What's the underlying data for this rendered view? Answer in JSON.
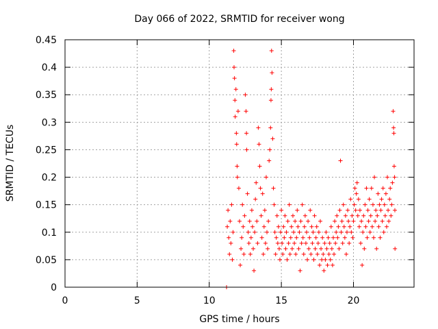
{
  "chart_data": {
    "type": "scatter",
    "title": "Day 066 of 2022, SRMTID for receiver wong",
    "xlabel": "GPS time / hours",
    "ylabel": "SRMTID / TECUs",
    "xlim": [
      0,
      24.2
    ],
    "ylim": [
      0,
      0.45
    ],
    "xticks": [
      0,
      5,
      10,
      15,
      20
    ],
    "xtick_labels": [
      "0",
      "5",
      "10",
      "15",
      "20"
    ],
    "yticks": [
      0,
      0.05,
      0.1,
      0.15,
      0.2,
      0.25,
      0.3,
      0.35,
      0.4,
      0.45
    ],
    "ytick_labels": [
      "0",
      "0.05",
      "0.1",
      "0.15",
      "0.2",
      "0.25",
      "0.3",
      "0.35",
      "0.4",
      "0.45"
    ],
    "grid": true,
    "marker": "+",
    "marker_color": "#ff0000",
    "series": [
      {
        "name": "SRMTID",
        "points": [
          [
            11.2,
            0.0
          ],
          [
            11.25,
            0.11
          ],
          [
            11.3,
            0.14
          ],
          [
            11.35,
            0.09
          ],
          [
            11.4,
            0.06
          ],
          [
            11.45,
            0.12
          ],
          [
            11.5,
            0.08
          ],
          [
            11.55,
            0.15
          ],
          [
            11.6,
            0.05
          ],
          [
            11.65,
            0.1
          ],
          [
            11.7,
            0.43
          ],
          [
            11.72,
            0.4
          ],
          [
            11.75,
            0.38
          ],
          [
            11.78,
            0.34
          ],
          [
            11.8,
            0.31
          ],
          [
            11.85,
            0.36
          ],
          [
            11.88,
            0.28
          ],
          [
            11.9,
            0.26
          ],
          [
            11.93,
            0.22
          ],
          [
            11.95,
            0.2
          ],
          [
            12.0,
            0.32
          ],
          [
            12.05,
            0.18
          ],
          [
            12.1,
            0.12
          ],
          [
            12.15,
            0.04
          ],
          [
            12.2,
            0.07
          ],
          [
            12.25,
            0.09
          ],
          [
            12.3,
            0.15
          ],
          [
            12.35,
            0.11
          ],
          [
            12.4,
            0.06
          ],
          [
            12.45,
            0.13
          ],
          [
            12.5,
            0.35
          ],
          [
            12.55,
            0.32
          ],
          [
            12.58,
            0.28
          ],
          [
            12.6,
            0.25
          ],
          [
            12.65,
            0.17
          ],
          [
            12.7,
            0.1
          ],
          [
            12.75,
            0.08
          ],
          [
            12.8,
            0.12
          ],
          [
            12.85,
            0.06
          ],
          [
            12.9,
            0.09
          ],
          [
            12.95,
            0.14
          ],
          [
            13.0,
            0.11
          ],
          [
            13.05,
            0.07
          ],
          [
            13.1,
            0.03
          ],
          [
            13.15,
            0.1
          ],
          [
            13.2,
            0.16
          ],
          [
            13.25,
            0.19
          ],
          [
            13.3,
            0.12
          ],
          [
            13.35,
            0.08
          ],
          [
            13.4,
            0.29
          ],
          [
            13.45,
            0.26
          ],
          [
            13.5,
            0.22
          ],
          [
            13.55,
            0.18
          ],
          [
            13.6,
            0.13
          ],
          [
            13.65,
            0.09
          ],
          [
            13.7,
            0.17
          ],
          [
            13.75,
            0.06
          ],
          [
            13.8,
            0.11
          ],
          [
            13.85,
            0.14
          ],
          [
            13.9,
            0.08
          ],
          [
            13.95,
            0.2
          ],
          [
            14.0,
            0.1
          ],
          [
            14.05,
            0.07
          ],
          [
            14.1,
            0.12
          ],
          [
            14.15,
            0.23
          ],
          [
            14.2,
            0.25
          ],
          [
            14.25,
            0.29
          ],
          [
            14.28,
            0.34
          ],
          [
            14.3,
            0.36
          ],
          [
            14.32,
            0.43
          ],
          [
            14.35,
            0.39
          ],
          [
            14.4,
            0.27
          ],
          [
            14.45,
            0.18
          ],
          [
            14.5,
            0.15
          ],
          [
            14.55,
            0.1
          ],
          [
            14.6,
            0.06
          ],
          [
            14.65,
            0.09
          ],
          [
            14.7,
            0.13
          ],
          [
            14.75,
            0.08
          ],
          [
            14.8,
            0.11
          ],
          [
            14.85,
            0.07
          ],
          [
            14.9,
            0.05
          ],
          [
            14.95,
            0.1
          ],
          [
            15.0,
            0.14
          ],
          [
            15.05,
            0.08
          ],
          [
            15.1,
            0.06
          ],
          [
            15.15,
            0.11
          ],
          [
            15.2,
            0.09
          ],
          [
            15.25,
            0.13
          ],
          [
            15.3,
            0.07
          ],
          [
            15.35,
            0.1
          ],
          [
            15.4,
            0.05
          ],
          [
            15.45,
            0.12
          ],
          [
            15.5,
            0.08
          ],
          [
            15.55,
            0.15
          ],
          [
            15.6,
            0.06
          ],
          [
            15.65,
            0.09
          ],
          [
            15.7,
            0.11
          ],
          [
            15.75,
            0.07
          ],
          [
            15.8,
            0.13
          ],
          [
            15.85,
            0.1
          ],
          [
            15.9,
            0.08
          ],
          [
            15.95,
            0.12
          ],
          [
            16.0,
            0.06
          ],
          [
            16.05,
            0.09
          ],
          [
            16.1,
            0.14
          ],
          [
            16.15,
            0.11
          ],
          [
            16.2,
            0.07
          ],
          [
            16.25,
            0.1
          ],
          [
            16.3,
            0.03
          ],
          [
            16.35,
            0.12
          ],
          [
            16.4,
            0.08
          ],
          [
            16.45,
            0.15
          ],
          [
            16.5,
            0.09
          ],
          [
            16.55,
            0.06
          ],
          [
            16.6,
            0.11
          ],
          [
            16.65,
            0.13
          ],
          [
            16.7,
            0.08
          ],
          [
            16.75,
            0.1
          ],
          [
            16.8,
            0.05
          ],
          [
            16.85,
            0.12
          ],
          [
            16.9,
            0.07
          ],
          [
            16.95,
            0.09
          ],
          [
            17.0,
            0.14
          ],
          [
            17.05,
            0.06
          ],
          [
            17.1,
            0.11
          ],
          [
            17.15,
            0.08
          ],
          [
            17.2,
            0.1
          ],
          [
            17.25,
            0.05
          ],
          [
            17.3,
            0.13
          ],
          [
            17.35,
            0.07
          ],
          [
            17.4,
            0.09
          ],
          [
            17.45,
            0.11
          ],
          [
            17.5,
            0.06
          ],
          [
            17.55,
            0.08
          ],
          [
            17.6,
            0.1
          ],
          [
            17.65,
            0.04
          ],
          [
            17.7,
            0.12
          ],
          [
            17.75,
            0.07
          ],
          [
            17.8,
            0.05
          ],
          [
            17.85,
            0.09
          ],
          [
            17.9,
            0.06
          ],
          [
            17.95,
            0.03
          ],
          [
            18.0,
            0.08
          ],
          [
            18.05,
            0.05
          ],
          [
            18.1,
            0.1
          ],
          [
            18.15,
            0.07
          ],
          [
            18.2,
            0.04
          ],
          [
            18.25,
            0.09
          ],
          [
            18.3,
            0.06
          ],
          [
            18.35,
            0.08
          ],
          [
            18.4,
            0.05
          ],
          [
            18.45,
            0.11
          ],
          [
            18.5,
            0.07
          ],
          [
            18.55,
            0.04
          ],
          [
            18.6,
            0.09
          ],
          [
            18.65,
            0.06
          ],
          [
            18.7,
            0.12
          ],
          [
            18.75,
            0.08
          ],
          [
            18.8,
            0.1
          ],
          [
            18.85,
            0.13
          ],
          [
            18.9,
            0.09
          ],
          [
            18.95,
            0.11
          ],
          [
            19.0,
            0.07
          ],
          [
            19.05,
            0.14
          ],
          [
            19.1,
            0.23
          ],
          [
            19.15,
            0.1
          ],
          [
            19.2,
            0.12
          ],
          [
            19.25,
            0.08
          ],
          [
            19.3,
            0.15
          ],
          [
            19.35,
            0.11
          ],
          [
            19.4,
            0.09
          ],
          [
            19.45,
            0.13
          ],
          [
            19.5,
            0.06
          ],
          [
            19.55,
            0.1
          ],
          [
            19.6,
            0.14
          ],
          [
            19.65,
            0.12
          ],
          [
            19.7,
            0.08
          ],
          [
            19.75,
            0.11
          ],
          [
            19.8,
            0.16
          ],
          [
            19.85,
            0.1
          ],
          [
            19.9,
            0.13
          ],
          [
            19.95,
            0.09
          ],
          [
            20.0,
            0.12
          ],
          [
            20.05,
            0.15
          ],
          [
            20.1,
            0.18
          ],
          [
            20.15,
            0.14
          ],
          [
            20.2,
            0.17
          ],
          [
            20.25,
            0.19
          ],
          [
            20.3,
            0.13
          ],
          [
            20.35,
            0.16
          ],
          [
            20.4,
            0.11
          ],
          [
            20.45,
            0.14
          ],
          [
            20.5,
            0.08
          ],
          [
            20.55,
            0.12
          ],
          [
            20.6,
            0.04
          ],
          [
            20.65,
            0.1
          ],
          [
            20.7,
            0.13
          ],
          [
            20.75,
            0.07
          ],
          [
            20.8,
            0.15
          ],
          [
            20.85,
            0.11
          ],
          [
            20.9,
            0.18
          ],
          [
            20.95,
            0.09
          ],
          [
            21.0,
            0.14
          ],
          [
            21.05,
            0.12
          ],
          [
            21.1,
            0.16
          ],
          [
            21.15,
            0.1
          ],
          [
            21.2,
            0.13
          ],
          [
            21.25,
            0.18
          ],
          [
            21.3,
            0.11
          ],
          [
            21.35,
            0.15
          ],
          [
            21.4,
            0.09
          ],
          [
            21.45,
            0.2
          ],
          [
            21.5,
            0.12
          ],
          [
            21.55,
            0.14
          ],
          [
            21.6,
            0.07
          ],
          [
            21.65,
            0.13
          ],
          [
            21.7,
            0.17
          ],
          [
            21.75,
            0.11
          ],
          [
            21.8,
            0.15
          ],
          [
            21.85,
            0.09
          ],
          [
            21.9,
            0.14
          ],
          [
            21.95,
            0.16
          ],
          [
            22.0,
            0.12
          ],
          [
            22.05,
            0.18
          ],
          [
            22.1,
            0.1
          ],
          [
            22.15,
            0.15
          ],
          [
            22.2,
            0.13
          ],
          [
            22.25,
            0.17
          ],
          [
            22.3,
            0.11
          ],
          [
            22.35,
            0.2
          ],
          [
            22.4,
            0.14
          ],
          [
            22.45,
            0.12
          ],
          [
            22.5,
            0.16
          ],
          [
            22.55,
            0.18
          ],
          [
            22.6,
            0.13
          ],
          [
            22.65,
            0.15
          ],
          [
            22.7,
            0.19
          ],
          [
            22.75,
            0.32
          ],
          [
            22.78,
            0.29
          ],
          [
            22.8,
            0.28
          ],
          [
            22.82,
            0.22
          ],
          [
            22.85,
            0.2
          ],
          [
            22.87,
            0.14
          ],
          [
            22.88,
            0.07
          ]
        ]
      }
    ]
  }
}
